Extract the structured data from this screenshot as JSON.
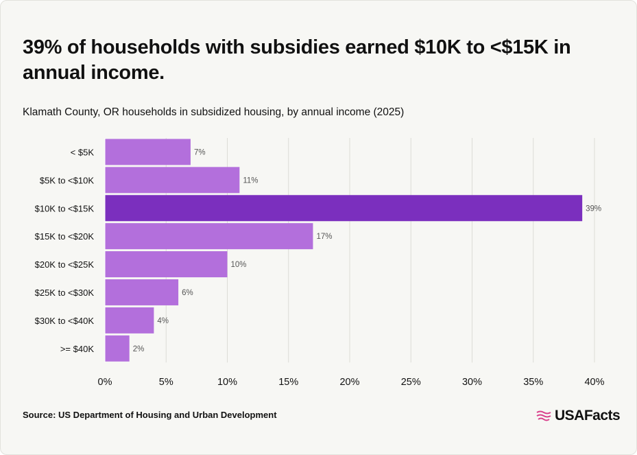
{
  "title": "39% of households with subsidies earned $10K to <$15K in annual income.",
  "subtitle": "Klamath County, OR households in subsidized housing, by annual income (2025)",
  "source": "Source: US Department of Housing and Urban Development",
  "brand": {
    "name": "USAFacts",
    "icon": "usa-flag-waves-icon",
    "icon_color": "#d9418c"
  },
  "colors": {
    "bar": "#b36fdc",
    "bar_highlight": "#7b2fbe",
    "grid": "#dcdcd6",
    "label": "#111111",
    "value_label": "#555555"
  },
  "chart_data": {
    "type": "bar",
    "orientation": "horizontal",
    "categories": [
      "< $5K",
      "$5K to <$10K",
      "$10K to <$15K",
      "$15K to <$20K",
      "$20K to <$25K",
      "$25K to <$30K",
      "$30K to <$40K",
      ">= $40K"
    ],
    "values": [
      7,
      11,
      39,
      17,
      10,
      6,
      4,
      2
    ],
    "value_labels": [
      "7%",
      "11%",
      "39%",
      "17%",
      "10%",
      "6%",
      "4%",
      "2%"
    ],
    "highlight_index": 2,
    "xlim": [
      0,
      40
    ],
    "xticks": [
      0,
      5,
      10,
      15,
      20,
      25,
      30,
      35,
      40
    ],
    "xtick_labels": [
      "0%",
      "5%",
      "10%",
      "15%",
      "20%",
      "25%",
      "30%",
      "35%",
      "40%"
    ],
    "grid": true,
    "legend": "none"
  }
}
